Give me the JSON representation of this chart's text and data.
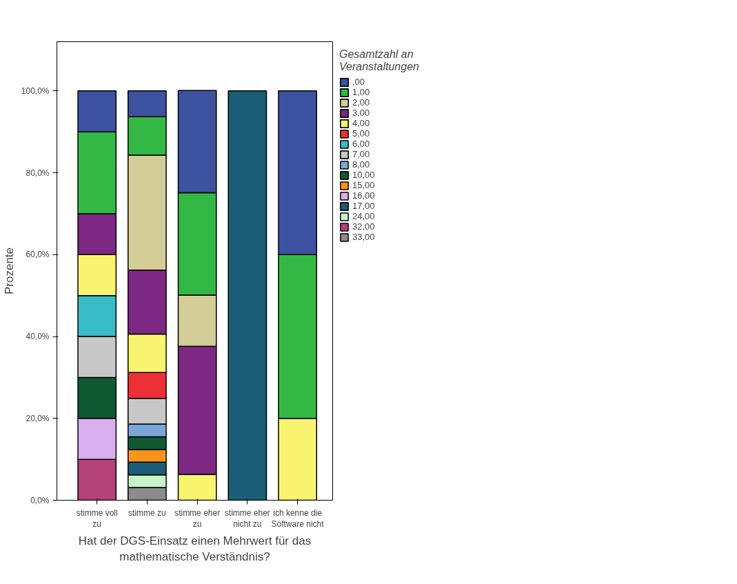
{
  "chart_data": {
    "type": "bar",
    "stacked": true,
    "xlabel": "Hat der DGS-Einsatz einen Mehrwert für das\nmathematische Verständnis?",
    "ylabel": "Prozente",
    "legend_title": "Gesamtzahl an\nVeranstaltungen",
    "legend": "right",
    "grid": false,
    "categories": [
      "stimme voll\nzu",
      "stimme zu",
      "stimme eher\nzu",
      "stimme eher\nnicht zu",
      "ich kenne die\nSoftware nicht"
    ],
    "ylim": [
      0,
      112
    ],
    "yticks": [
      {
        "value": 0,
        "label": "0,0%"
      },
      {
        "value": 20,
        "label": "20,0%"
      },
      {
        "value": 40,
        "label": "40,0%"
      },
      {
        "value": 60,
        "label": "60,0%"
      },
      {
        "value": 80,
        "label": "80,0%"
      },
      {
        "value": 100,
        "label": "100,0%"
      }
    ],
    "series": [
      {
        "name": "33,00",
        "color": "#8c8c8c",
        "values": [
          null,
          3.1,
          null,
          null,
          null
        ]
      },
      {
        "name": "32,00",
        "color": "#b4437a",
        "values": [
          10,
          null,
          null,
          null,
          null
        ]
      },
      {
        "name": "24,00",
        "color": "#c8f5c8",
        "values": [
          null,
          3.1,
          null,
          null,
          null
        ]
      },
      {
        "name": "17,00",
        "color": "#1b5d76",
        "values": [
          null,
          3.1,
          null,
          100,
          null
        ]
      },
      {
        "name": "16,00",
        "color": "#d9aff0",
        "values": [
          10,
          null,
          null,
          null,
          null
        ]
      },
      {
        "name": "15,00",
        "color": "#f7941d",
        "values": [
          null,
          3.1,
          null,
          null,
          null
        ]
      },
      {
        "name": "10,00",
        "color": "#0f5a32",
        "values": [
          10,
          3.1,
          null,
          null,
          null
        ]
      },
      {
        "name": "8,00",
        "color": "#7ba7d8",
        "values": [
          null,
          3.1,
          null,
          null,
          null
        ]
      },
      {
        "name": "7,00",
        "color": "#c8c8c8",
        "values": [
          10,
          6.3,
          null,
          null,
          null
        ]
      },
      {
        "name": "6,00",
        "color": "#38bdc6",
        "values": [
          10,
          null,
          null,
          null,
          null
        ]
      },
      {
        "name": "5,00",
        "color": "#ed2f36",
        "values": [
          null,
          6.3,
          null,
          null,
          null
        ]
      },
      {
        "name": "4,00",
        "color": "#f9f46f",
        "values": [
          10,
          9.4,
          6.3,
          null,
          20
        ]
      },
      {
        "name": "3,00",
        "color": "#7d2882",
        "values": [
          10,
          15.6,
          31.3,
          null,
          null
        ]
      },
      {
        "name": "2,00",
        "color": "#d3ce97",
        "values": [
          null,
          28.1,
          12.5,
          null,
          null
        ]
      },
      {
        "name": "1,00",
        "color": "#33b846",
        "values": [
          20,
          9.4,
          25,
          null,
          40
        ]
      },
      {
        "name": ",00",
        "color": "#3d52a1",
        "values": [
          10,
          6.3,
          25,
          null,
          40
        ]
      }
    ]
  }
}
